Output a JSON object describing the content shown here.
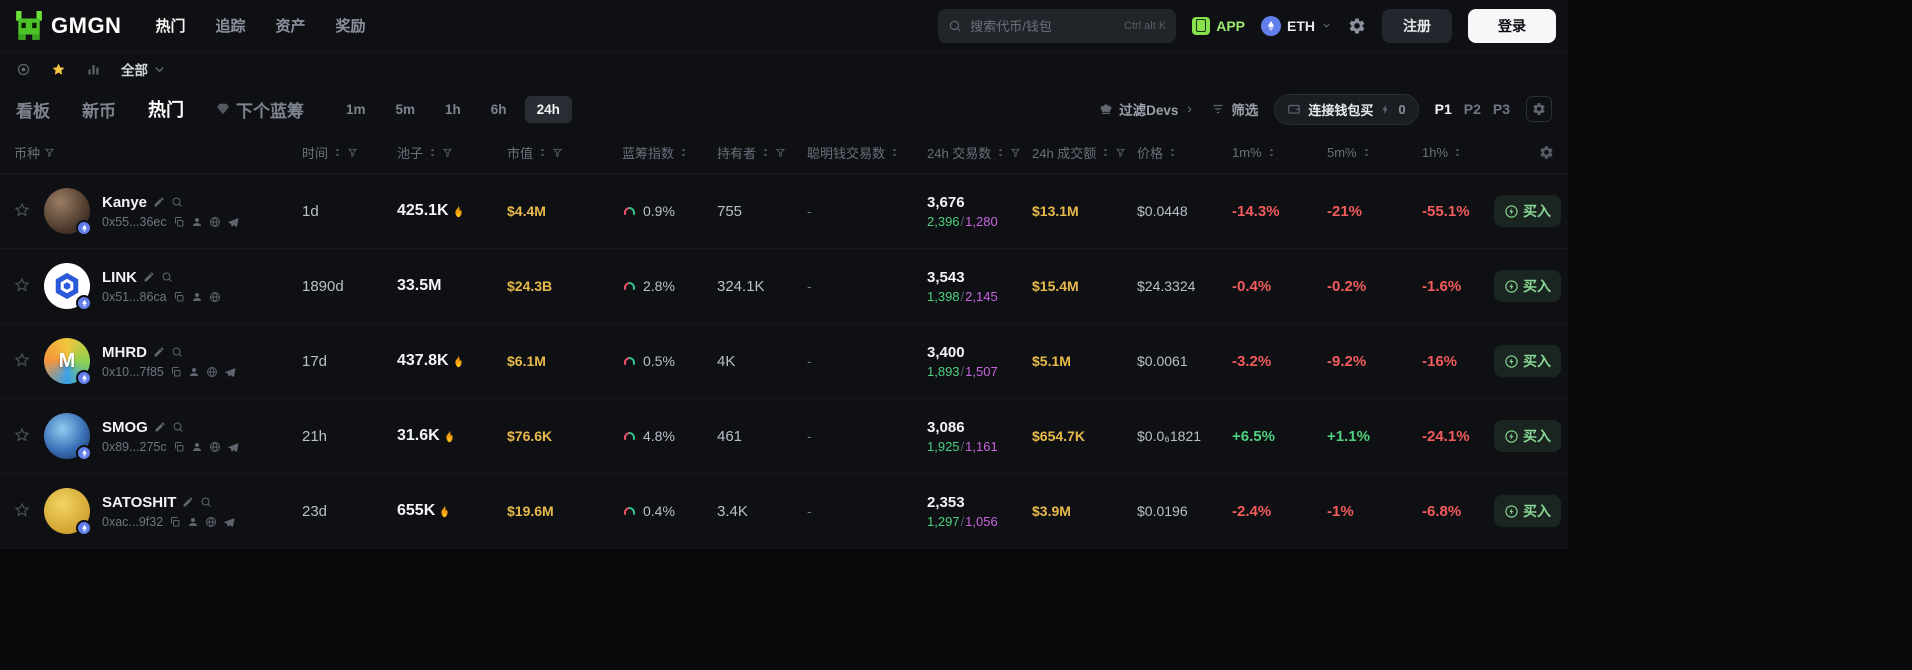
{
  "navbar": {
    "logo_text": "GMGN",
    "nav_items": [
      {
        "label": "热门",
        "active": true
      },
      {
        "label": "追踪",
        "active": false
      },
      {
        "label": "资产",
        "active": false
      },
      {
        "label": "奖励",
        "active": false
      }
    ],
    "search": {
      "placeholder": "搜索代币/钱包",
      "shortcut": "Ctrl alt K"
    },
    "app_label": "APP",
    "chain_label": "ETH",
    "register_label": "注册",
    "login_label": "登录"
  },
  "filter_bar": {
    "all_label": "全部"
  },
  "tab_bar": {
    "board_label": "看板",
    "new_label": "新币",
    "hot_label": "热门",
    "bluechip_label": "下个蓝筹",
    "time_filters": [
      "1m",
      "5m",
      "1h",
      "6h",
      "24h"
    ],
    "active_time": "24h",
    "filter_devs_label": "过滤Devs",
    "filter_label": "筛选",
    "wallet_buy_label": "连接钱包买",
    "wallet_buy_count": "0",
    "presets": [
      "P1",
      "P2",
      "P3"
    ],
    "active_preset": "P1"
  },
  "table": {
    "buy_label": "买入",
    "columns": [
      {
        "label": "币种",
        "sort": false,
        "filter": true
      },
      {
        "label": "时间",
        "sort": true,
        "filter": true
      },
      {
        "label": "池子",
        "sort": true,
        "filter": true
      },
      {
        "label": "市值",
        "sort": true,
        "filter": true
      },
      {
        "label": "蓝筹指数",
        "sort": true,
        "filter": false
      },
      {
        "label": "持有者",
        "sort": true,
        "filter": true
      },
      {
        "label": "聪明钱交易数",
        "sort": true,
        "filter": false
      },
      {
        "label": "24h 交易数",
        "sort": true,
        "filter": true
      },
      {
        "label": "24h 成交额",
        "sort": true,
        "filter": true
      },
      {
        "label": "价格",
        "sort": true,
        "filter": false
      },
      {
        "label": "1m%",
        "sort": true,
        "filter": false
      },
      {
        "label": "5m%",
        "sort": true,
        "filter": false
      },
      {
        "label": "1h%",
        "sort": true,
        "filter": false
      }
    ],
    "rows": [
      {
        "name": "Kanye",
        "address": "0x55...36ec",
        "age": "1d",
        "pool": "425.1K",
        "pool_fire": true,
        "mcap": "$4.4M",
        "bluechip": "0.9%",
        "holders": "755",
        "smart_tx": "-",
        "tx_total": "3,676",
        "tx_buys": "2,396",
        "tx_sells": "1,280",
        "volume": "$13.1M",
        "price": "$0.0448",
        "change_1m": "-14.3%",
        "change_5m": "-21%",
        "change_1h": "-55.1%",
        "avatar": {
          "style": "avatar-kanye"
        },
        "has_telegram": true
      },
      {
        "name": "LINK",
        "address": "0x51...86ca",
        "age": "1890d",
        "pool": "33.5M",
        "pool_fire": false,
        "mcap": "$24.3B",
        "bluechip": "2.8%",
        "holders": "324.1K",
        "smart_tx": "-",
        "tx_total": "3,543",
        "tx_buys": "1,398",
        "tx_sells": "2,145",
        "volume": "$15.4M",
        "price": "$24.3324",
        "change_1m": "-0.4%",
        "change_5m": "-0.2%",
        "change_1h": "-1.6%",
        "avatar": {
          "style": "avatar-link",
          "glyph": "hexagon"
        },
        "has_telegram": false
      },
      {
        "name": "MHRD",
        "address": "0x10...7f85",
        "age": "17d",
        "pool": "437.8K",
        "pool_fire": true,
        "mcap": "$6.1M",
        "bluechip": "0.5%",
        "holders": "4K",
        "smart_tx": "-",
        "tx_total": "3,400",
        "tx_buys": "1,893",
        "tx_sells": "1,507",
        "volume": "$5.1M",
        "price": "$0.0061",
        "change_1m": "-3.2%",
        "change_5m": "-9.2%",
        "change_1h": "-16%",
        "avatar": {
          "style": "avatar-mhrd",
          "letter": "M"
        },
        "has_telegram": true
      },
      {
        "name": "SMOG",
        "address": "0x89...275c",
        "age": "21h",
        "pool": "31.6K",
        "pool_fire": true,
        "mcap": "$76.6K",
        "bluechip": "4.8%",
        "holders": "461",
        "smart_tx": "-",
        "tx_total": "3,086",
        "tx_buys": "1,925",
        "tx_sells": "1,161",
        "volume": "$654.7K",
        "price": "$0.0₆1821",
        "change_1m": "+6.5%",
        "change_5m": "+1.1%",
        "change_1h": "-24.1%",
        "avatar": {
          "style": "avatar-smog"
        },
        "has_telegram": true
      },
      {
        "name": "SATOSHIT",
        "address": "0xac...9f32",
        "age": "23d",
        "pool": "655K",
        "pool_fire": true,
        "mcap": "$19.6M",
        "bluechip": "0.4%",
        "holders": "3.4K",
        "smart_tx": "-",
        "tx_total": "2,353",
        "tx_buys": "1,297",
        "tx_sells": "1,056",
        "volume": "$3.9M",
        "price": "$0.0196",
        "change_1m": "-2.4%",
        "change_5m": "-1%",
        "change_1h": "-6.8%",
        "avatar": {
          "style": "avatar-satoshit"
        },
        "has_telegram": true
      }
    ]
  },
  "colors": {
    "accent_green": "#88d693",
    "positive": "#4fd07e",
    "negative": "#f25c5c",
    "sell_purple": "#c964e0",
    "money_yellow": "#e8ba4c",
    "star_yellow": "#f5c443",
    "eth_blue": "#627eea"
  }
}
